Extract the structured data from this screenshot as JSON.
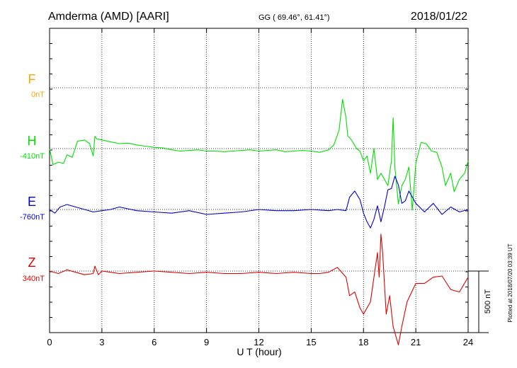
{
  "header": {
    "station": "Amderma (AMD)  [AARI]",
    "coords": "GG ( 69.46°,  61.41°)",
    "date": "2018/01/22"
  },
  "footer": {
    "plotted_note": "Plotted at 2018/07/20 03:39 UT"
  },
  "colors": {
    "F": "#ffa500",
    "H": "#00e000",
    "E": "#0000d0",
    "Z": "#e00000",
    "axis": "#000000",
    "grid": "#000000"
  },
  "chart_data": {
    "type": "line",
    "xlabel": "U T (hour)",
    "xlim": [
      0,
      24
    ],
    "x_ticks": [
      0,
      3,
      6,
      9,
      12,
      15,
      18,
      21,
      24
    ],
    "scale_bar": {
      "label": "500 nT",
      "value_nT": 500
    },
    "grid": "dotted",
    "series": [
      {
        "name": "F",
        "baseline_label": "0nT",
        "color": "#ffa500",
        "x": [],
        "y": []
      },
      {
        "name": "H",
        "baseline_label": "-410nT",
        "color": "#00e000",
        "x": [
          0,
          0.2,
          0.5,
          0.8,
          1,
          1.3,
          1.6,
          2,
          2.3,
          2.5,
          2.6,
          2.7,
          3,
          3.5,
          4,
          4.5,
          5,
          5.5,
          6,
          6.5,
          7,
          7.5,
          8,
          8.5,
          9,
          9.5,
          10,
          10.5,
          11,
          11.5,
          12,
          12.5,
          13,
          13.5,
          14,
          14.5,
          15,
          15.5,
          16,
          16.3,
          16.6,
          16.8,
          17,
          17.1,
          17.2,
          17.4,
          17.6,
          17.8,
          18,
          18.2,
          18.4,
          18.6,
          18.8,
          19,
          19.2,
          19.4,
          19.6,
          19.7,
          19.8,
          20,
          20.2,
          20.4,
          20.6,
          20.8,
          21,
          21.3,
          21.6,
          21.9,
          22.2,
          22.5,
          22.7,
          23,
          23.2,
          23.5,
          23.8,
          24
        ],
        "y": [
          0,
          -130,
          -110,
          -120,
          -50,
          -70,
          60,
          70,
          40,
          -60,
          100,
          80,
          70,
          55,
          40,
          45,
          30,
          20,
          10,
          5,
          -10,
          -20,
          -15,
          -10,
          -20,
          -20,
          -25,
          -20,
          -15,
          -10,
          -20,
          -15,
          -10,
          -25,
          -20,
          -15,
          -20,
          -30,
          -10,
          30,
          150,
          400,
          250,
          100,
          90,
          50,
          0,
          -20,
          -100,
          -60,
          -200,
          0,
          -250,
          -200,
          -250,
          -300,
          -100,
          250,
          -150,
          -450,
          -300,
          -250,
          -150,
          -500,
          -120,
          50,
          40,
          -20,
          -30,
          -150,
          -300,
          -200,
          -350,
          -250,
          -200,
          -100
        ]
      },
      {
        "name": "E",
        "baseline_label": "-760nT",
        "color": "#0000d0",
        "x": [
          0,
          0.3,
          0.6,
          1,
          1.5,
          2,
          2.5,
          3,
          3.5,
          4,
          5,
          6,
          7,
          8,
          9,
          10,
          11,
          12,
          13,
          14,
          15,
          16,
          16.5,
          17,
          17.2,
          17.5,
          17.8,
          18,
          18.2,
          18.4,
          18.6,
          18.8,
          19,
          19.2,
          19.4,
          19.6,
          19.8,
          20,
          20.2,
          20.4,
          20.6,
          21,
          21.5,
          22,
          22.5,
          23,
          23.5,
          24
        ],
        "y": [
          0,
          -30,
          20,
          40,
          20,
          0,
          -20,
          -10,
          0,
          20,
          -10,
          -20,
          -30,
          -10,
          -40,
          -30,
          -20,
          0,
          -10,
          -10,
          0,
          -10,
          0,
          -10,
          100,
          150,
          80,
          -30,
          -100,
          -150,
          -80,
          30,
          -100,
          20,
          160,
          170,
          270,
          200,
          50,
          70,
          150,
          50,
          -20,
          50,
          -40,
          20,
          -20,
          0
        ]
      },
      {
        "name": "Z",
        "baseline_label": "340nT",
        "color": "#e00000",
        "x": [
          0,
          0.5,
          1,
          1.5,
          2,
          2.5,
          2.6,
          2.8,
          3,
          3.5,
          4,
          5,
          6,
          7,
          8,
          9,
          10,
          11,
          12,
          13,
          14,
          15,
          15.5,
          16,
          16.5,
          17,
          17.2,
          17.5,
          17.8,
          18,
          18.2,
          18.4,
          18.6,
          18.8,
          18.9,
          19,
          19.1,
          19.3,
          19.5,
          19.7,
          19.9,
          20,
          20.2,
          20.5,
          21,
          21.5,
          22,
          22.5,
          23,
          23.5,
          24
        ],
        "y": [
          0,
          -20,
          10,
          -10,
          -30,
          -20,
          40,
          -30,
          0,
          -10,
          -20,
          -10,
          0,
          -10,
          -20,
          -10,
          -20,
          -20,
          -10,
          -20,
          -10,
          -20,
          -20,
          -10,
          30,
          -50,
          -200,
          -170,
          -300,
          -350,
          -300,
          -250,
          -50,
          150,
          -50,
          300,
          150,
          -350,
          -200,
          -450,
          -550,
          -600,
          -450,
          -250,
          -100,
          -100,
          -50,
          -40,
          -150,
          -170,
          -50
        ]
      }
    ]
  }
}
